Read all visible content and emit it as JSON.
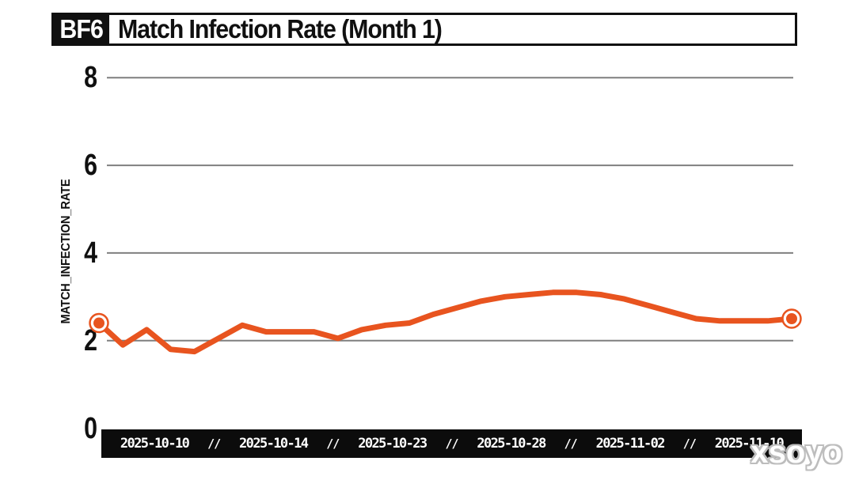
{
  "header": {
    "badge": "BF6",
    "title": "Match Infection Rate (Month 1)"
  },
  "watermark": "xsoyo",
  "chart_data": {
    "type": "line",
    "title": "BF6 Match Infection Rate (Month 1)",
    "xlabel": "",
    "ylabel": "MATCH_INFECTION_RATE",
    "ylim": [
      0,
      8.8
    ],
    "y_ticks": [
      0,
      2,
      4,
      6,
      8
    ],
    "grid": "horizontal",
    "legend_position": "none",
    "x_tick_labels": [
      "2025-10-10",
      "2025-10-14",
      "2025-10-23",
      "2025-10-28",
      "2025-11-02",
      "2025-11-10"
    ],
    "x_tick_separator": "//",
    "series": [
      {
        "name": "match_infection_rate",
        "values": [
          2.4,
          1.9,
          2.25,
          1.8,
          1.75,
          2.05,
          2.35,
          2.2,
          2.2,
          2.2,
          2.05,
          2.25,
          2.35,
          2.4,
          2.6,
          2.75,
          2.9,
          3.0,
          3.05,
          3.1,
          3.1,
          3.05,
          2.95,
          2.8,
          2.65,
          2.5,
          2.45,
          2.45,
          2.45,
          2.5
        ]
      }
    ],
    "endpoint_markers": {
      "first": 2.4,
      "last": 2.5
    },
    "colors": {
      "line": "#e8541f",
      "gridline": "#7f7f7f",
      "axis_band": "#0c0c0c",
      "text": "#101010",
      "background": "#ffffff"
    }
  }
}
